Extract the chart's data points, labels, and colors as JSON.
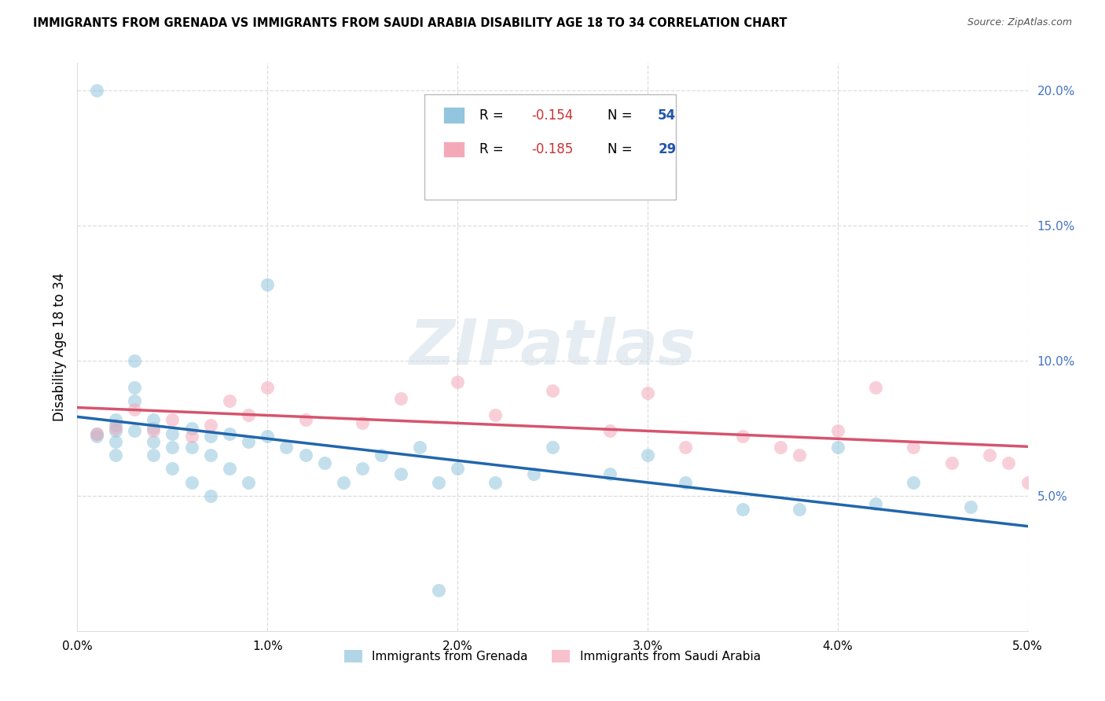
{
  "title": "IMMIGRANTS FROM GRENADA VS IMMIGRANTS FROM SAUDI ARABIA DISABILITY AGE 18 TO 34 CORRELATION CHART",
  "source": "Source: ZipAtlas.com",
  "ylabel": "Disability Age 18 to 34",
  "xlim": [
    0.0,
    0.05
  ],
  "ylim": [
    0.0,
    0.21
  ],
  "xticks": [
    0.0,
    0.01,
    0.02,
    0.03,
    0.04,
    0.05
  ],
  "xtick_labels": [
    "0.0%",
    "1.0%",
    "2.0%",
    "3.0%",
    "4.0%",
    "5.0%"
  ],
  "yticks_right": [
    0.05,
    0.1,
    0.15,
    0.2
  ],
  "ytick_labels_right": [
    "5.0%",
    "10.0%",
    "15.0%",
    "20.0%"
  ],
  "grenada_R": -0.154,
  "grenada_N": 54,
  "saudi_R": -0.185,
  "saudi_N": 29,
  "grenada_color": "#92c5de",
  "saudi_color": "#f4a9b8",
  "grenada_line_color": "#2166ac",
  "saudi_line_color": "#d6546e",
  "legend_label_grenada": "Immigrants from Grenada",
  "legend_label_saudi": "Immigrants from Saudi Arabia",
  "watermark": "ZIPatlas",
  "grenada_x": [
    0.001,
    0.001,
    0.001,
    0.002,
    0.002,
    0.002,
    0.002,
    0.002,
    0.003,
    0.003,
    0.003,
    0.003,
    0.004,
    0.004,
    0.004,
    0.004,
    0.005,
    0.005,
    0.005,
    0.006,
    0.006,
    0.006,
    0.007,
    0.007,
    0.007,
    0.008,
    0.008,
    0.009,
    0.009,
    0.01,
    0.01,
    0.011,
    0.012,
    0.013,
    0.014,
    0.015,
    0.016,
    0.017,
    0.018,
    0.019,
    0.02,
    0.022,
    0.024,
    0.025,
    0.028,
    0.03,
    0.032,
    0.035,
    0.038,
    0.04,
    0.042,
    0.044,
    0.047,
    0.019
  ],
  "grenada_y": [
    0.2,
    0.073,
    0.072,
    0.078,
    0.076,
    0.074,
    0.07,
    0.065,
    0.1,
    0.09,
    0.085,
    0.074,
    0.078,
    0.075,
    0.07,
    0.065,
    0.073,
    0.068,
    0.06,
    0.075,
    0.068,
    0.055,
    0.072,
    0.065,
    0.05,
    0.073,
    0.06,
    0.07,
    0.055,
    0.128,
    0.072,
    0.068,
    0.065,
    0.062,
    0.055,
    0.06,
    0.065,
    0.058,
    0.068,
    0.055,
    0.06,
    0.055,
    0.058,
    0.068,
    0.058,
    0.065,
    0.055,
    0.045,
    0.045,
    0.068,
    0.047,
    0.055,
    0.046,
    0.015
  ],
  "saudi_x": [
    0.001,
    0.002,
    0.003,
    0.004,
    0.005,
    0.006,
    0.007,
    0.008,
    0.009,
    0.01,
    0.012,
    0.015,
    0.017,
    0.02,
    0.022,
    0.025,
    0.028,
    0.03,
    0.032,
    0.035,
    0.037,
    0.04,
    0.042,
    0.044,
    0.046,
    0.048,
    0.049,
    0.05,
    0.038
  ],
  "saudi_y": [
    0.073,
    0.075,
    0.082,
    0.074,
    0.078,
    0.072,
    0.076,
    0.085,
    0.08,
    0.09,
    0.078,
    0.077,
    0.086,
    0.092,
    0.08,
    0.089,
    0.074,
    0.088,
    0.068,
    0.072,
    0.068,
    0.074,
    0.09,
    0.068,
    0.062,
    0.065,
    0.062,
    0.055,
    0.065
  ]
}
